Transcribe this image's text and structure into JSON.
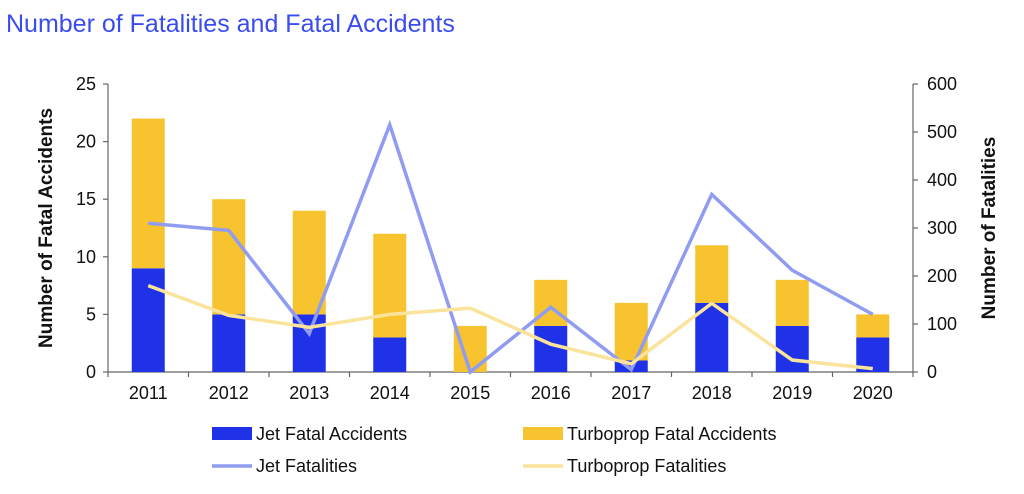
{
  "chart_data": {
    "type": "bar",
    "title": "Number of Fatalities and Fatal Accidents",
    "categories": [
      "2011",
      "2012",
      "2013",
      "2014",
      "2015",
      "2016",
      "2017",
      "2018",
      "2019",
      "2020"
    ],
    "bar_series": [
      {
        "name": "Jet Fatal Accidents",
        "color": "#2032e8",
        "values": [
          9,
          5,
          5,
          3,
          0,
          4,
          1,
          6,
          4,
          3
        ]
      },
      {
        "name": "Turboprop Fatal Accidents",
        "color": "#f7c32e",
        "values": [
          13,
          10,
          9,
          9,
          4,
          4,
          5,
          5,
          4,
          2
        ]
      }
    ],
    "line_series": [
      {
        "name": "Jet Fatalities",
        "color": "#8f9cf2",
        "values": [
          310,
          295,
          80,
          515,
          0,
          135,
          5,
          370,
          212,
          120
        ]
      },
      {
        "name": "Turboprop Fatalities",
        "color": "#fae39a",
        "values": [
          180,
          118,
          93,
          120,
          133,
          58,
          17,
          143,
          25,
          7
        ]
      }
    ],
    "ylabel": "Number of Fatal Accidents",
    "y2label": "Number of Fatalities",
    "ylim": [
      0,
      25
    ],
    "y2lim": [
      0,
      600
    ],
    "yticks": [
      0,
      5,
      10,
      15,
      20,
      25
    ],
    "y2ticks": [
      0,
      100,
      200,
      300,
      400,
      500,
      600
    ],
    "grid": false,
    "legend_position": "bottom"
  }
}
